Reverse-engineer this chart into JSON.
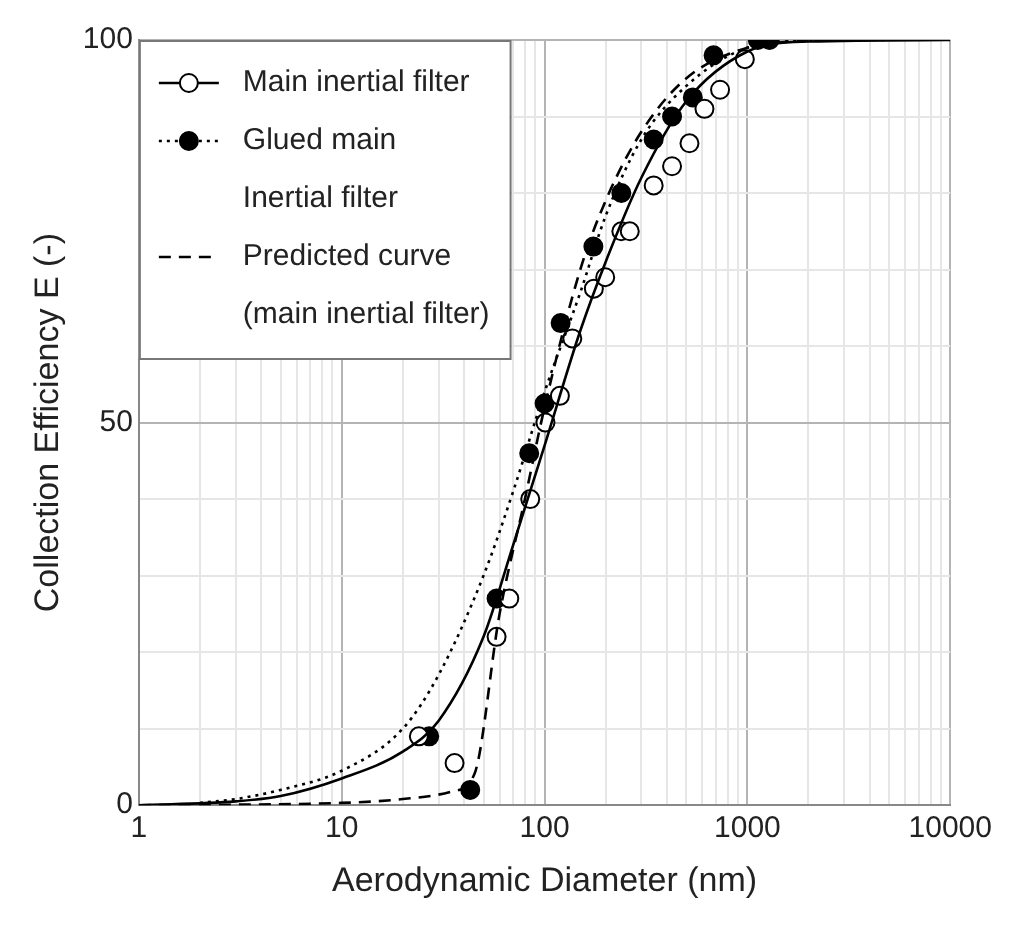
{
  "chart_data": {
    "type": "scatter",
    "xlabel": "Aerodynamic Diameter (nm)",
    "ylabel": "Collection Efficiency E (-)",
    "log": "x",
    "xlim": [
      1,
      10000
    ],
    "ylim": [
      0,
      100
    ],
    "xticks": [
      1,
      {
        "value": 2,
        "label": null
      },
      {
        "value": 3,
        "label": null
      },
      {
        "value": 4,
        "label": null
      },
      {
        "value": 5,
        "label": null
      },
      {
        "value": 6,
        "label": null
      },
      {
        "value": 7,
        "label": null
      },
      {
        "value": 8,
        "label": null
      },
      {
        "value": 9,
        "label": null
      },
      10,
      {
        "value": 20,
        "label": null
      },
      {
        "value": 30,
        "label": null
      },
      {
        "value": 40,
        "label": null
      },
      {
        "value": 50,
        "label": null
      },
      {
        "value": 60,
        "label": null
      },
      {
        "value": 70,
        "label": null
      },
      {
        "value": 80,
        "label": null
      },
      {
        "value": 90,
        "label": null
      },
      100,
      {
        "value": 200,
        "label": null
      },
      {
        "value": 300,
        "label": null
      },
      {
        "value": 400,
        "label": null
      },
      {
        "value": 500,
        "label": null
      },
      {
        "value": 600,
        "label": null
      },
      {
        "value": 700,
        "label": null
      },
      {
        "value": 800,
        "label": null
      },
      {
        "value": 900,
        "label": null
      },
      1000,
      {
        "value": 2000,
        "label": null
      },
      {
        "value": 3000,
        "label": null
      },
      {
        "value": 4000,
        "label": null
      },
      {
        "value": 5000,
        "label": null
      },
      {
        "value": 6000,
        "label": null
      },
      {
        "value": 7000,
        "label": null
      },
      {
        "value": 8000,
        "label": null
      },
      {
        "value": 9000,
        "label": null
      },
      10000
    ],
    "yticks": [
      0,
      {
        "value": 10,
        "label": null
      },
      {
        "value": 20,
        "label": null
      },
      {
        "value": 30,
        "label": null
      },
      {
        "value": 40,
        "label": null
      },
      50,
      {
        "value": 60,
        "label": null
      },
      {
        "value": 70,
        "label": null
      },
      {
        "value": 80,
        "label": null
      },
      {
        "value": 90,
        "label": null
      },
      100
    ],
    "grid": true,
    "legend": "top left",
    "series": [
      {
        "name": "Main inertial filter",
        "type": "scatter",
        "marker": "circle",
        "line_style": "solid",
        "color": "#ffffff",
        "x": [
          24,
          36,
          58,
          67,
          85,
          101,
          119,
          137,
          175,
          199,
          239,
          263,
          345,
          425,
          518,
          614,
          733,
          971
        ],
        "values": [
          9,
          5.5,
          22,
          27,
          40,
          50,
          53.5,
          61,
          67.5,
          69,
          75,
          75,
          81,
          83.5,
          86.5,
          91,
          93.5,
          97.5
        ]
      },
      {
        "name": "Glued main\nInertial filter",
        "type": "scatter",
        "marker": "circle",
        "line_style": "dotted",
        "color": "#000000",
        "x": [
          27,
          43,
          58,
          84,
          100,
          120,
          174,
          239,
          345,
          425,
          538,
          681,
          1125,
          1284
        ],
        "values": [
          9,
          2,
          27,
          46,
          52.5,
          63,
          73,
          80,
          87,
          90,
          92.5,
          98,
          100,
          100
        ]
      },
      {
        "name": "Predicted curve\n(main inertial filter)",
        "type": "line",
        "marker": "none",
        "line_style": "dashed",
        "color": "#000000",
        "x": [
          1,
          10,
          20,
          35,
          45,
          60,
          80,
          100,
          150,
          200,
          300,
          500,
          1000,
          2000
        ],
        "values": [
          0,
          0.3,
          0.8,
          1.8,
          4,
          25,
          40,
          52,
          70,
          79,
          88,
          95,
          99,
          100
        ]
      },
      {
        "type": "line",
        "marker": "none",
        "line_style": "solid",
        "color": "#000000",
        "x": [
          1,
          3,
          5,
          10,
          20,
          30,
          50,
          70,
          100,
          150,
          200,
          300,
          500,
          1000,
          2000,
          10000
        ],
        "values": [
          0,
          0.5,
          1.2,
          3.5,
          7,
          11,
          22,
          34,
          47,
          62,
          71,
          82,
          92,
          98.5,
          99.8,
          100
        ]
      },
      {
        "type": "line",
        "marker": "none",
        "line_style": "dotted",
        "color": "#000000",
        "x": [
          2,
          3,
          5,
          10,
          20,
          30,
          50,
          70,
          100,
          150,
          200,
          300,
          500,
          1000,
          2000,
          5000
        ],
        "values": [
          0.3,
          0.8,
          2,
          4.5,
          10,
          17,
          30,
          41,
          54,
          67,
          77,
          87,
          94,
          99,
          99.9,
          100
        ]
      }
    ]
  }
}
